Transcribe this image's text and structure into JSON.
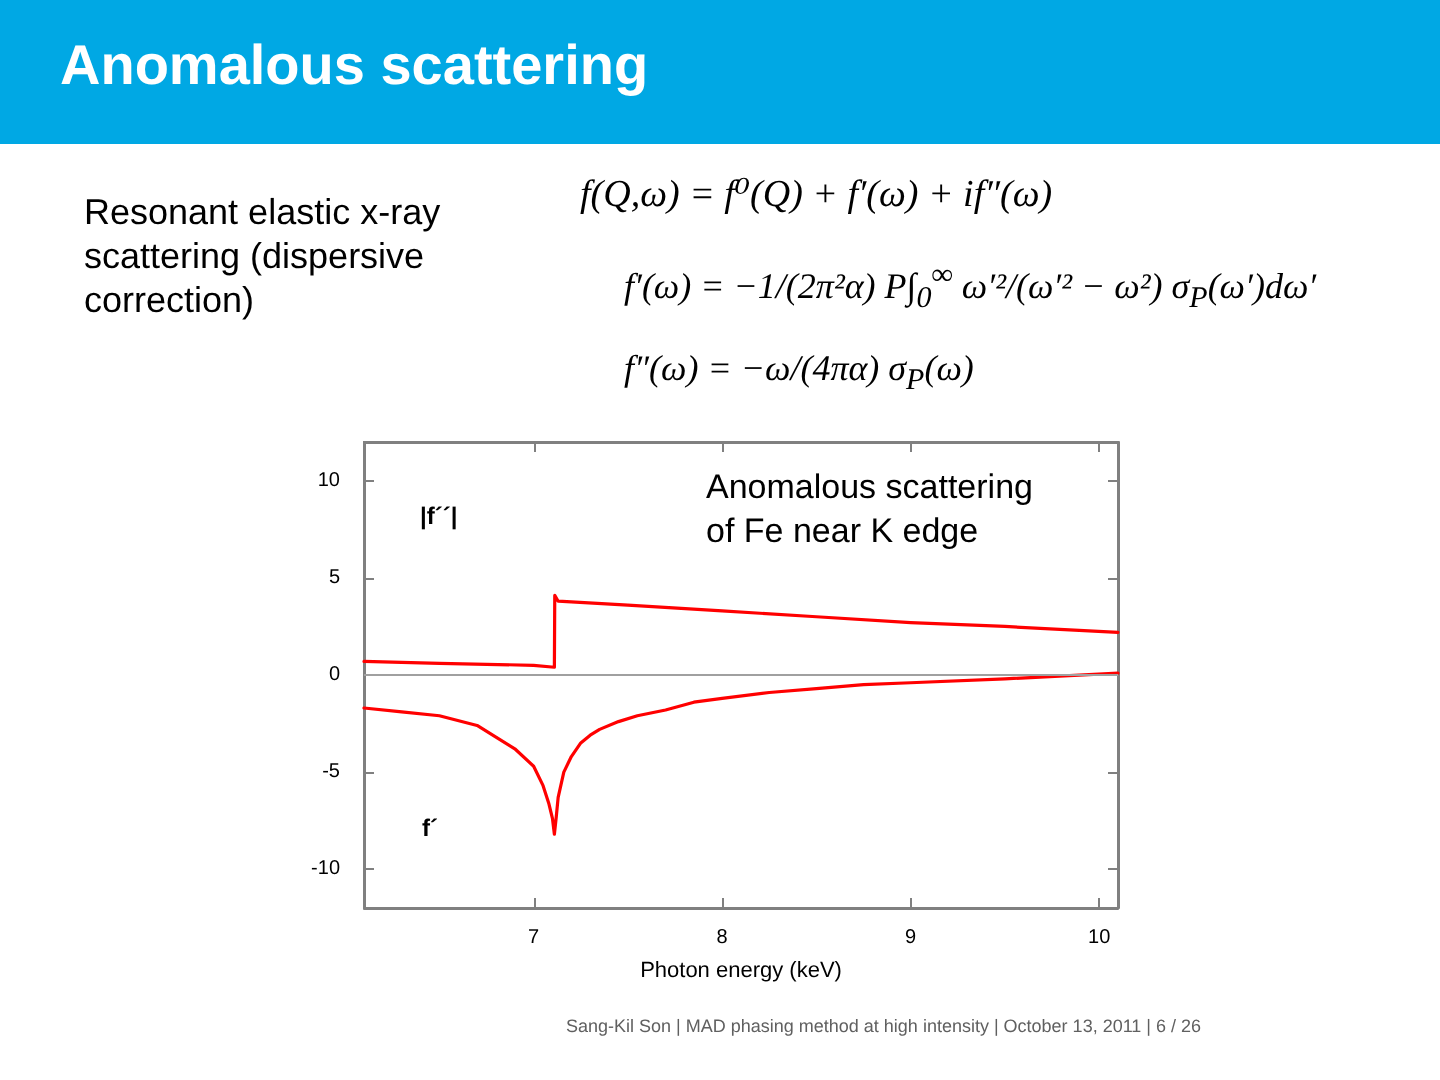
{
  "chart_data": {
    "type": "line",
    "title": "Anomalous scattering",
    "xlabel": "Photon energy (keV)",
    "xlim": [
      6.1,
      10.1
    ],
    "xticks": [
      7,
      8,
      9,
      10
    ],
    "ylim": [
      -12,
      12
    ],
    "yticks": [
      -10,
      -5,
      0,
      5,
      10
    ],
    "series": [
      {
        "color": "#ff0000",
        "x": [
          6.1,
          6.5,
          7.0,
          7.11,
          7.112,
          7.13,
          7.5,
          8.0,
          8.5,
          9.0,
          9.5,
          10.1
        ],
        "values": [
          0.7,
          0.6,
          0.5,
          0.4,
          4.1,
          3.8,
          3.6,
          3.3,
          3.0,
          2.7,
          2.5,
          2.2
        ]
      },
      {
        "color": "#ff0000",
        "x": [
          6.1,
          6.3,
          6.5,
          6.7,
          6.8,
          6.9,
          7.0,
          7.05,
          7.08,
          7.1,
          7.11,
          7.12,
          7.13,
          7.16,
          7.2,
          7.25,
          7.3,
          7.35,
          7.45,
          7.55,
          7.7,
          7.85,
          8.0,
          8.25,
          8.5,
          8.75,
          9.0,
          9.5,
          10.1
        ],
        "values": [
          -1.7,
          -1.9,
          -2.1,
          -2.6,
          -3.2,
          -3.8,
          -4.7,
          -5.7,
          -6.6,
          -7.4,
          -8.2,
          -7.3,
          -6.3,
          -5.0,
          -4.2,
          -3.5,
          -3.1,
          -2.8,
          -2.4,
          -2.1,
          -1.8,
          -1.4,
          -1.2,
          -0.9,
          -0.7,
          -0.5,
          -0.4,
          -0.2,
          0.1
        ]
      }
    ],
    "ref_lines": [
      {
        "axis": "y",
        "value": 0,
        "color": "#a0a0a0"
      }
    ],
    "annotations": [
      "Resonant elastic x-ray scattering (dispersive correction)",
      "f(Q,ω) = f⁰(Q) + f′(ω) + if″(ω)",
      "f′(ω) = −1/(2π²α) P∫$_{0}$$^{∞}$ ω′²/(ω′² − ω²) σ$_{P}$(ω′)dω′",
      "f″(ω) = −ω/(4πα) σ$_{P}$(ω)",
      "Anomalous scattering\nof Fe near K edge",
      "|f´´|",
      "f´",
      "Sang-Kil Son | MAD phasing method at high intensity | October 13, 2011 | 6 / 26"
    ]
  }
}
